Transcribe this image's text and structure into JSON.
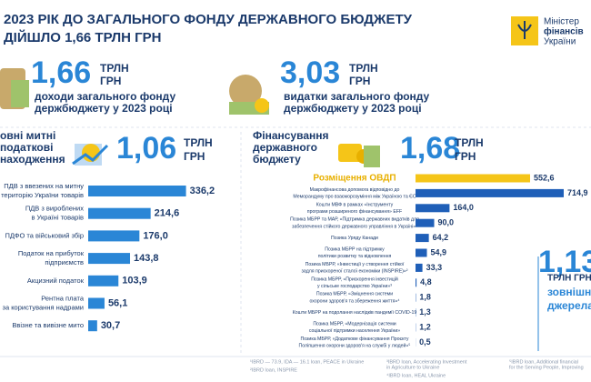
{
  "header": {
    "title_lines": [
      "2023 РІК ДО ЗАГАЛЬНОГО ФОНДУ ДЕРЖАВНОГО БЮДЖЕТУ",
      "ДІЙШЛО 1,66 ТРЛН ГРН"
    ],
    "logo_lines": [
      "Міністер",
      "фінансів",
      "України"
    ]
  },
  "kpis": [
    {
      "value": "1,66",
      "unit_lines": [
        "ТРЛН",
        "ГРН"
      ],
      "caption_lines": [
        "доходи загального фонду",
        "держбюджету у 2023 році"
      ]
    },
    {
      "value": "3,03",
      "unit_lines": [
        "ТРЛН",
        "ГРН"
      ],
      "caption_lines": [
        "видатки загального фонду",
        "держбюджету у 2023 році"
      ]
    }
  ],
  "chart_data": [
    {
      "type": "bar",
      "orientation": "horizontal",
      "title_lines": [
        "овні митні",
        "податкові",
        "находження"
      ],
      "total": "1,06",
      "unit_lines": [
        "ТРЛН",
        "ГРН"
      ],
      "categories": [
        [
          "ПДВ з ввезених на митну",
          "територію України товарів"
        ],
        [
          "ПДВ з вироблених",
          "в Україні товарів"
        ],
        [
          "ПДФО та військовий збір"
        ],
        [
          "Податок на прибуток",
          "підприємств"
        ],
        [
          "Акцизний податок"
        ],
        [
          "Рентна плата",
          "за користування надрами"
        ],
        [
          "Ввізне та вивізне мито"
        ]
      ],
      "values": [
        336.2,
        214.6,
        176.0,
        143.8,
        103.9,
        56.1,
        30.7
      ],
      "value_labels": [
        "336,2",
        "214,6",
        "176,0",
        "143,8",
        "103,9",
        "56,1",
        "30,7"
      ],
      "color": "#2a86d6"
    },
    {
      "type": "bar",
      "orientation": "horizontal",
      "title_lines": [
        "Фінансування",
        "державного",
        "бюджету"
      ],
      "total": "1,68",
      "unit_lines": [
        "ТРЛН",
        "ГРН"
      ],
      "categories": [
        [
          "Розміщення ОВДП"
        ],
        [
          "Макрофінансова допомога відповідно до",
          "Меморандуму про взаєморозуміння між Україною та ЄС"
        ],
        [
          "Кошти МВФ в рамках «Інструменту",
          "програми розширеного фінансування» EFF"
        ],
        [
          "Позика МБРР та МАР, «Підтримка державних видатків для",
          "забезпечення стійкого державного управління в Україні»¹"
        ],
        [
          "Позика Уряду Канади"
        ],
        [
          "Позика МБРР на підтримку",
          "політики розвитку та відновлення"
        ],
        [
          "Позика МБРР, «Інвестиції у створення стійкої",
          "задля прискореної сталої економіки (INSPIRE)»²"
        ],
        [
          "Позика МБРР, «Прискорення інвестицій",
          "у сільське господарство України»³"
        ],
        [
          "Позика МБРР, «Зміцнення системи",
          "охорони здоров'я та збереження життя»⁴"
        ],
        [
          "Кошти МБРР на подолання наслідків пандемії COVID-19"
        ],
        [
          "Позика МБРР, «Модернізація системи",
          "соціальної підтримки населення України»"
        ],
        [
          "Позика МБРР, «Додаткове фінансування Проєкту",
          "Поліпшення охорони здоров'я на службі у людей»⁵"
        ]
      ],
      "values": [
        552.6,
        714.9,
        164.0,
        90.0,
        64.2,
        54.9,
        33.3,
        4.8,
        1.8,
        1.3,
        1.2,
        0.5
      ],
      "value_labels": [
        "552,6",
        "714,9",
        "164,0",
        "90,0",
        "64,2",
        "54,9",
        "33,3",
        "4,8",
        "1,8",
        "1,3",
        "1,2",
        "0,5"
      ],
      "colors": [
        "#f5c518",
        "#1f5fb8",
        "#1f5fb8",
        "#1f5fb8",
        "#1f5fb8",
        "#1f5fb8",
        "#1f5fb8",
        "#1f5fb8",
        "#1f5fb8",
        "#1f5fb8",
        "#1f5fb8",
        "#1f5fb8"
      ]
    }
  ],
  "external": {
    "value": "1,13",
    "unit": "ТРЛН ГРН",
    "caption_lines": [
      "зовнішн",
      "джерела"
    ]
  },
  "footnotes": [
    "¹IBRD — 73.9, IDA — 16.1 loan, PEACE in Ukraine",
    "²IBRD loan, INSPIRE",
    "³IBRD loan, Accelerating Investment",
    "in Agriculture to Ukraine",
    "⁴IBRD loan, HEAL Ukraine",
    "⁵IBRD loan, Additional financial",
    "for the Serving People, Improving"
  ]
}
